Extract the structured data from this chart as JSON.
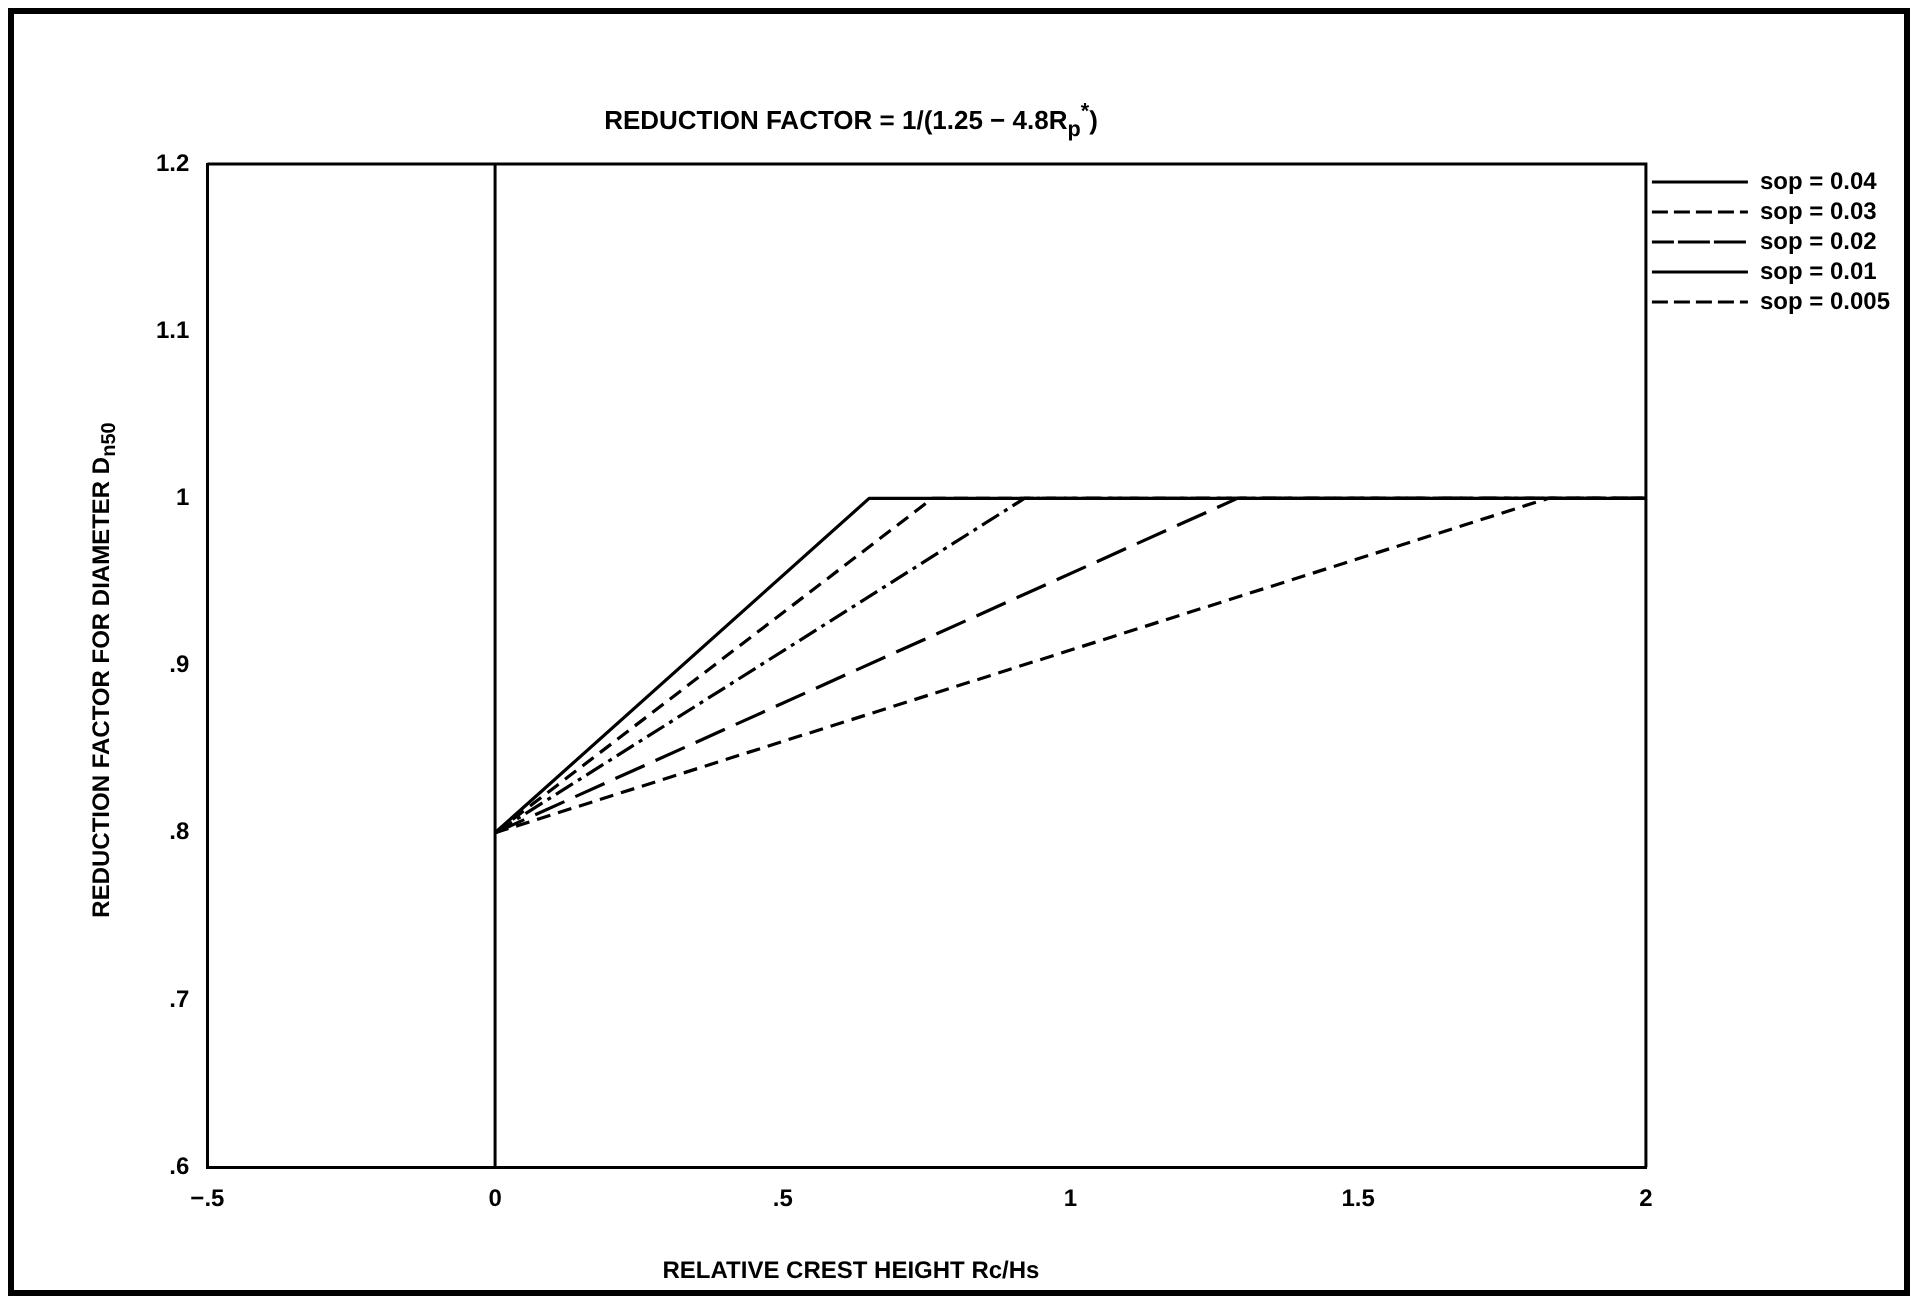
{
  "chart_data": {
    "type": "line",
    "title": "REDUCTION FACTOR = 1/(1.25 − 4.8R$_{p}$$^{*}$)",
    "xlabel": "RELATIVE CREST HEIGHT Rc/Hs",
    "ylabel": "REDUCTION FACTOR FOR DIAMETER D$_{n50}$",
    "series": [
      {
        "name": "sop = 0.04",
        "color": "#000000",
        "x": [
          0,
          0.65,
          2
        ],
        "values": [
          0.8,
          1,
          1
        ],
        "line_style": "solid"
      },
      {
        "name": "sop = 0.03",
        "color": "#000000",
        "x": [
          0,
          0.76,
          2
        ],
        "values": [
          0.8,
          1,
          1
        ],
        "line_style": "dashed"
      },
      {
        "name": "sop = 0.02",
        "color": "#000000",
        "x": [
          0,
          0.92,
          2
        ],
        "values": [
          0.8,
          1,
          1
        ],
        "line_style": "dashdot"
      },
      {
        "name": "sop = 0.01",
        "color": "#000000",
        "x": [
          0,
          1.29,
          2
        ],
        "values": [
          0.8,
          1,
          1
        ],
        "line_style": "longdash"
      },
      {
        "name": "sop = 0.005",
        "color": "#000000",
        "x": [
          0,
          1.83,
          2
        ],
        "values": [
          0.8,
          1,
          1
        ],
        "line_style": "dashed"
      }
    ],
    "xlim": [
      -0.5,
      2
    ],
    "xticks": [
      {
        "value": -0.5,
        "label": "−.5"
      },
      0,
      {
        "value": 0.5,
        "label": ".5"
      },
      1,
      1.5,
      2
    ],
    "ylim": [
      0.6,
      1.2
    ],
    "yticks": [
      {
        "value": 0.6,
        "label": ".6"
      },
      {
        "value": 0.7,
        "label": ".7"
      },
      {
        "value": 0.8,
        "label": ".8"
      },
      {
        "value": 0.9,
        "label": ".9"
      },
      1,
      1.1,
      1.2
    ],
    "ref_lines": [
      {
        "axis": "x",
        "value": 0,
        "color": "#000000",
        "line_style": "solid"
      }
    ],
    "grid": false,
    "legend": "top right",
    "marker": "none"
  }
}
